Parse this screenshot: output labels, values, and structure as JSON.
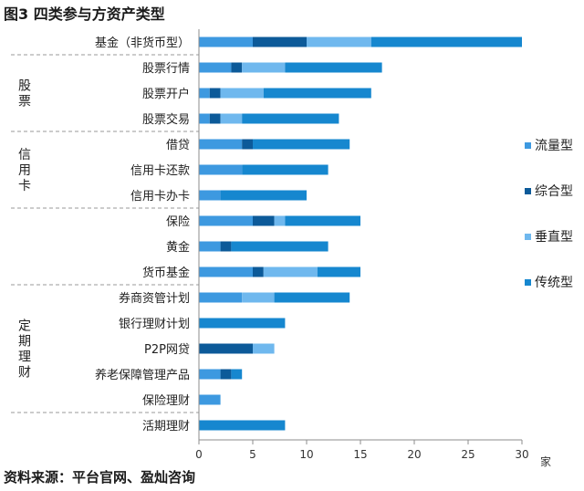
{
  "title": "图3 四类参与方资产类型",
  "source": "资料来源：平台官网、盈灿咨询",
  "colors": {
    "流量型": "#3d99e0",
    "综合型": "#0c5a99",
    "垂直型": "#6fb8ee",
    "传统型": "#1687cf",
    "axis": "#8c8c8c",
    "separator": "#9a9a9a"
  },
  "chart_data": {
    "type": "bar",
    "orientation": "horizontal",
    "stacked": true,
    "categories": [
      "基金（非货币型）",
      "股票行情",
      "股票开户",
      "股票交易",
      "借贷",
      "信用卡还款",
      "信用卡办卡",
      "保险",
      "黄金",
      "货币基金",
      "券商资管计划",
      "银行理财计划",
      "P2P网贷",
      "养老保障管理产品",
      "保险理财",
      "活期理财"
    ],
    "groups": [
      {
        "label": "股票",
        "categories": [
          "股票行情",
          "股票开户",
          "股票交易"
        ]
      },
      {
        "label": "信用卡",
        "categories": [
          "借贷",
          "信用卡还款",
          "信用卡办卡"
        ]
      },
      {
        "label": "定期理财",
        "categories": [
          "券商资管计划",
          "银行理财计划",
          "P2P网贷",
          "养老保障管理产品",
          "保险理财"
        ]
      }
    ],
    "series": [
      {
        "name": "流量型",
        "values": [
          5,
          3,
          1,
          1,
          4,
          4,
          2,
          5,
          2,
          5,
          4,
          0,
          0,
          2,
          2,
          0
        ]
      },
      {
        "name": "综合型",
        "values": [
          5,
          1,
          1,
          1,
          1,
          0,
          0,
          2,
          1,
          1,
          0,
          0,
          5,
          1,
          0,
          0
        ]
      },
      {
        "name": "垂直型",
        "values": [
          6,
          4,
          4,
          2,
          0,
          0,
          0,
          1,
          0,
          5,
          3,
          0,
          2,
          0,
          0,
          0
        ]
      },
      {
        "name": "传统型",
        "values": [
          14,
          9,
          10,
          9,
          9,
          8,
          8,
          7,
          9,
          4,
          7,
          8,
          0,
          1,
          0,
          8
        ]
      }
    ],
    "xlim": [
      0,
      30
    ],
    "xticks": [
      0,
      5,
      10,
      15,
      20,
      25,
      30
    ],
    "xunit": "家",
    "legend_position": "right"
  }
}
